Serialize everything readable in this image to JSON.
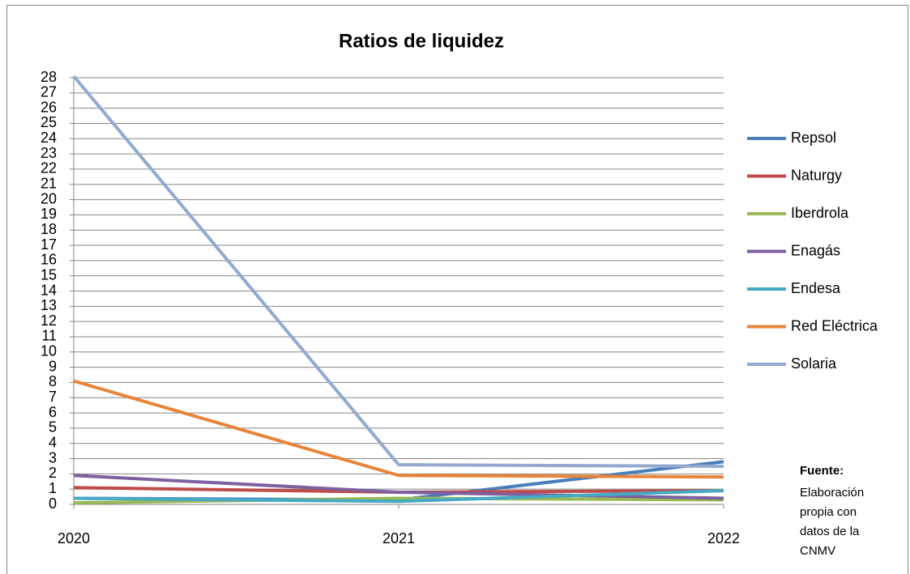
{
  "chart_data": {
    "type": "line",
    "title": "Ratios de liquidez",
    "categories": [
      "2020",
      "2021",
      "2022"
    ],
    "series": [
      {
        "name": "Repsol",
        "color": "#4a7ebb",
        "values": [
          0.4,
          0.3,
          2.8
        ]
      },
      {
        "name": "Naturgy",
        "color": "#be4b48",
        "values": [
          1.1,
          0.8,
          0.9
        ]
      },
      {
        "name": "Iberdrola",
        "color": "#98b954",
        "values": [
          0.1,
          0.4,
          0.3
        ]
      },
      {
        "name": "Enagás",
        "color": "#7d60a0",
        "values": [
          1.9,
          0.8,
          0.4
        ]
      },
      {
        "name": "Endesa",
        "color": "#46aac5",
        "values": [
          0.4,
          0.2,
          0.9
        ]
      },
      {
        "name": "Red Eléctrica",
        "color": "#e8843a",
        "values": [
          8.1,
          1.9,
          1.8
        ]
      },
      {
        "name": "Solaria",
        "color": "#93a9cf",
        "values": [
          28.1,
          2.6,
          2.5
        ]
      }
    ],
    "ylim": [
      0,
      28
    ],
    "yticks": [
      0,
      1,
      2,
      3,
      4,
      5,
      6,
      7,
      8,
      9,
      10,
      11,
      12,
      13,
      14,
      15,
      16,
      17,
      18,
      19,
      20,
      21,
      22,
      23,
      24,
      25,
      26,
      27,
      28
    ],
    "grid": true,
    "legend": "right",
    "note_title": "Fuente:",
    "note_lines": [
      "Elaboración",
      "propia con",
      "datos de la",
      "CNMV"
    ]
  }
}
